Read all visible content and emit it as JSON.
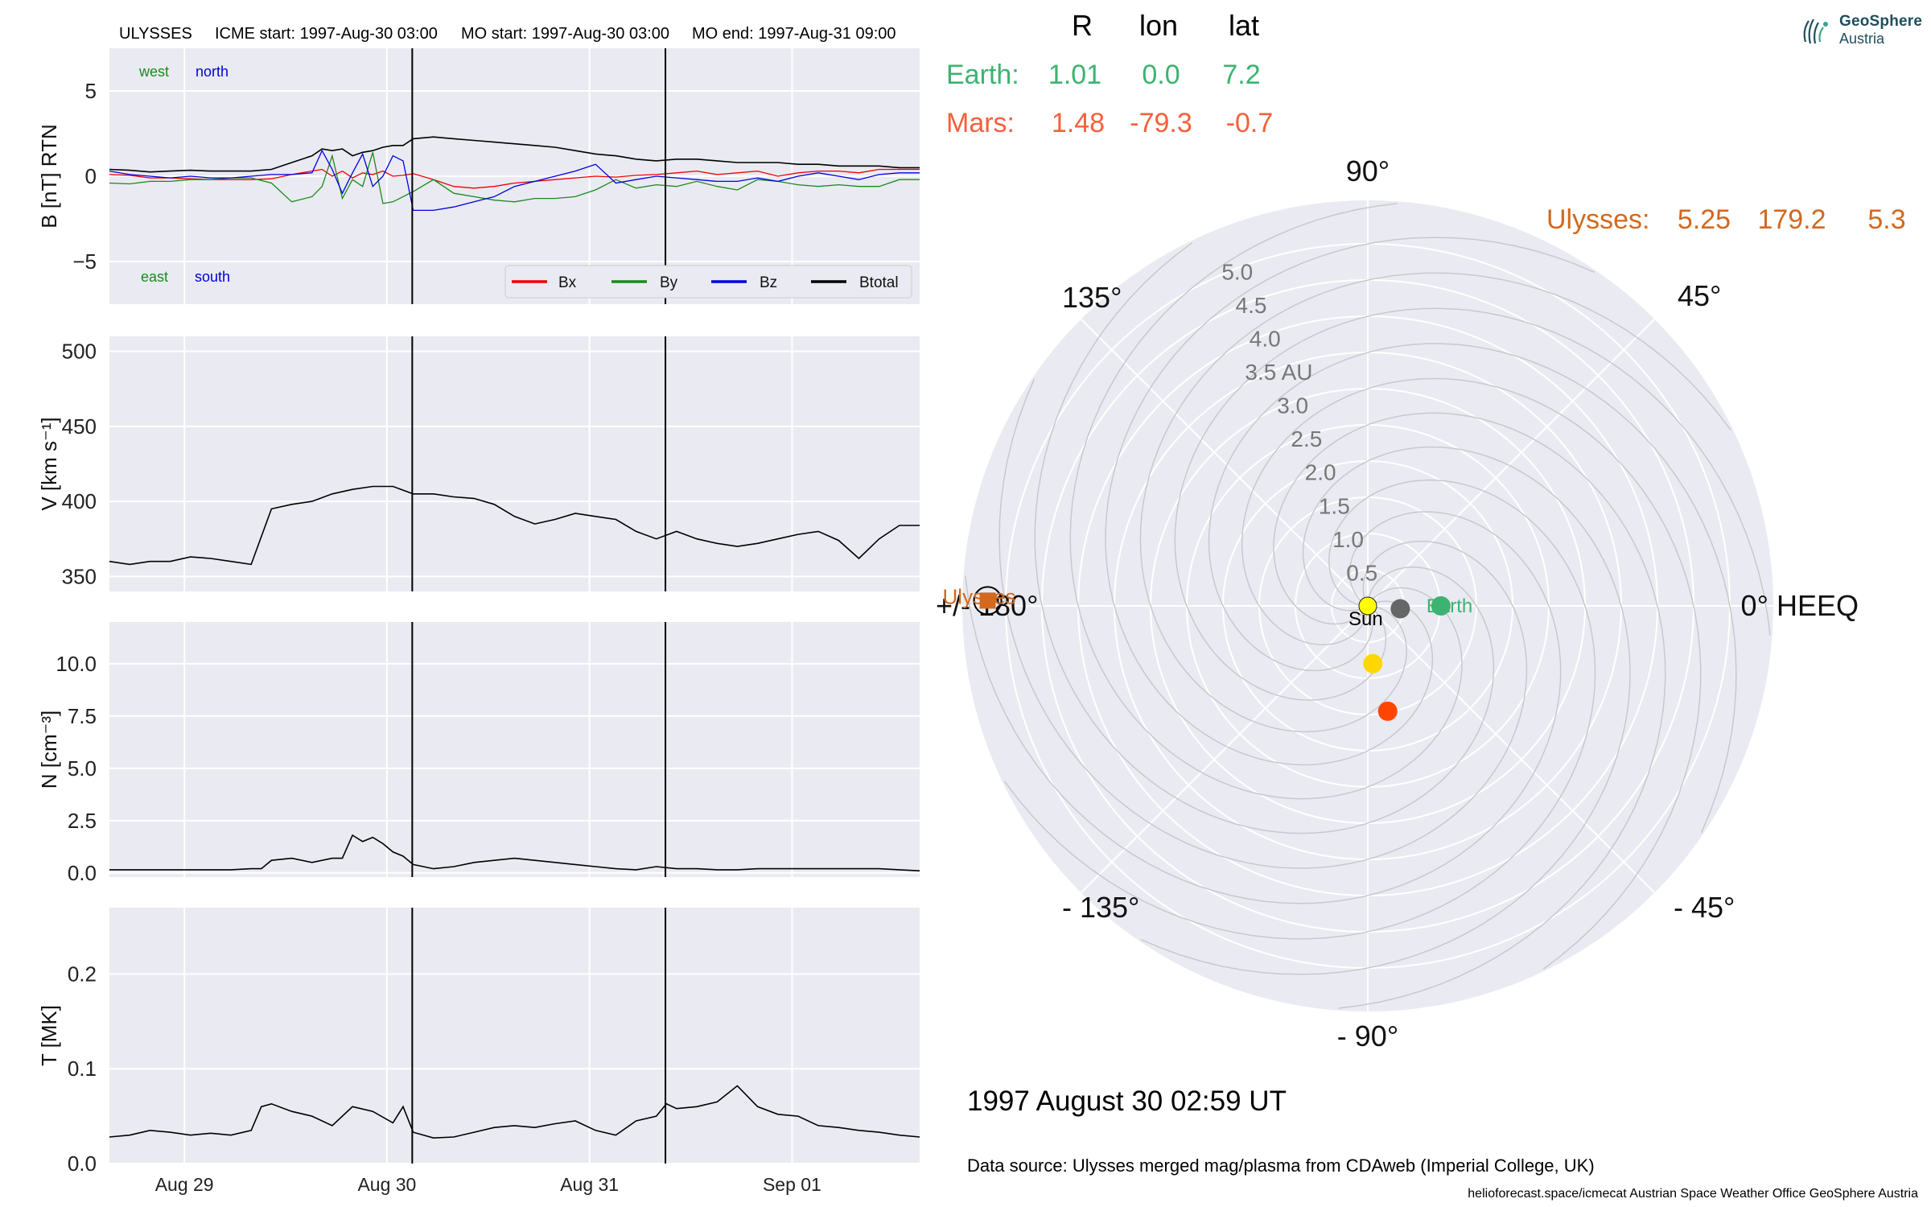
{
  "header": {
    "spacecraft": "ULYSSES",
    "icme_start": "ICME start: 1997-Aug-30 03:00",
    "mo_start": "MO start: 1997-Aug-30 03:00",
    "mo_end": "MO end: 1997-Aug-31 09:00"
  },
  "logo": {
    "line1": "GeoSphere",
    "line2": "Austria",
    "color": "#1f4e5c"
  },
  "positions_table": {
    "col_r": "R",
    "col_lon": "lon",
    "col_lat": "lat",
    "earth": {
      "label": "Earth:",
      "r": "1.01",
      "lon": "0.0",
      "lat": "7.2",
      "color": "#3cb371"
    },
    "mars": {
      "label": "Mars:",
      "r": "1.48",
      "lon": "-79.3",
      "lat": "-0.7",
      "color": "#f4603c"
    },
    "ulysses": {
      "label": "Ulysses:",
      "r": "5.25",
      "lon": "179.2",
      "lat": "5.3",
      "color": "#d2691e"
    }
  },
  "colors": {
    "bx": "#ee0000",
    "by": "#1a8a1a",
    "bz": "#0000dd",
    "btotal": "#000000",
    "panel_bg": "#eaeaf2",
    "grid": "#ffffff",
    "polar_bg": "#eaeaf2",
    "sun": "#ffff00",
    "earth_dot": "#3cb371",
    "mars_dot": "#ff4500",
    "gray_dot": "#666666",
    "yellow_dot": "#ffd700",
    "ulysses_marker": "#d2691e"
  },
  "timestamp": "1997 August 30  02:59 UT",
  "data_source": "Data source: Ulysses merged mag/plasma from CDAweb (Imperial College, UK)",
  "footer": "helioforecast.space/icmecat   Austrian Space Weather Office   GeoSphere Austria",
  "chart_data": [
    {
      "type": "line",
      "panel": "magnetic_field",
      "ylabel": "B [nT] RTN",
      "ylim": [
        -7.5,
        7.5
      ],
      "yticks": [
        -5,
        0,
        5
      ],
      "ytick_labels": [
        "−5",
        "0",
        "5"
      ],
      "xlim": [
        0,
        4
      ],
      "xticks": [
        0.37,
        1.37,
        2.37,
        3.37
      ],
      "xtick_labels": [
        "Aug 29",
        "Aug 30",
        "Aug 31",
        "Sep 01"
      ],
      "vlines": [
        1.495,
        2.745
      ],
      "annotations": {
        "west": "west",
        "north": "north",
        "east": "east",
        "south": "south"
      },
      "legend": [
        "Bx",
        "By",
        "Bz",
        "Btotal"
      ],
      "legend_position": "lower-right",
      "x": [
        0,
        0.1,
        0.2,
        0.3,
        0.4,
        0.5,
        0.6,
        0.7,
        0.8,
        0.9,
        1.0,
        1.05,
        1.1,
        1.15,
        1.2,
        1.25,
        1.3,
        1.35,
        1.4,
        1.45,
        1.5,
        1.6,
        1.7,
        1.8,
        1.9,
        2.0,
        2.1,
        2.2,
        2.3,
        2.4,
        2.5,
        2.6,
        2.7,
        2.8,
        2.9,
        3.0,
        3.1,
        3.2,
        3.3,
        3.4,
        3.5,
        3.6,
        3.7,
        3.8,
        3.9,
        4.0
      ],
      "series": [
        {
          "name": "Bx",
          "values": [
            0.1,
            0.05,
            -0.1,
            -0.1,
            -0.15,
            -0.2,
            -0.2,
            -0.2,
            -0.15,
            0.1,
            0.3,
            0.4,
            0.0,
            0.3,
            -0.1,
            0.2,
            0.1,
            0.3,
            0.0,
            0.05,
            0.15,
            -0.2,
            -0.6,
            -0.7,
            -0.6,
            -0.4,
            -0.3,
            -0.2,
            -0.1,
            0.0,
            -0.05,
            0.05,
            0.1,
            0.2,
            0.3,
            0.1,
            0.2,
            0.3,
            0.0,
            0.2,
            0.3,
            0.3,
            0.2,
            0.4,
            0.4,
            0.4
          ]
        },
        {
          "name": "By",
          "values": [
            -0.4,
            -0.45,
            -0.3,
            -0.3,
            -0.2,
            -0.2,
            -0.1,
            -0.1,
            -0.4,
            -1.5,
            -1.2,
            -0.6,
            1.2,
            -1.3,
            -0.2,
            -0.6,
            1.4,
            -1.6,
            -1.5,
            -1.2,
            -0.9,
            -0.2,
            -1.0,
            -1.2,
            -1.4,
            -1.5,
            -1.3,
            -1.3,
            -1.2,
            -0.8,
            -0.2,
            -0.7,
            -0.5,
            -0.6,
            -0.3,
            -0.6,
            -0.8,
            -0.2,
            -0.3,
            -0.5,
            -0.6,
            -0.5,
            -0.6,
            -0.6,
            -0.2,
            -0.2
          ]
        },
        {
          "name": "Bz",
          "values": [
            0.3,
            0.1,
            0.0,
            -0.1,
            0.0,
            -0.1,
            -0.1,
            0.0,
            0.1,
            0.1,
            0.2,
            1.5,
            0.4,
            -1.0,
            0.2,
            1.3,
            -0.6,
            0.0,
            1.2,
            0.9,
            -2.0,
            -2.0,
            -1.8,
            -1.5,
            -1.2,
            -0.6,
            -0.3,
            0.0,
            0.3,
            0.7,
            -0.4,
            -0.2,
            0.0,
            -0.1,
            -0.2,
            -0.3,
            -0.3,
            -0.1,
            -0.3,
            0.0,
            0.2,
            0.0,
            -0.2,
            0.1,
            0.2,
            0.2
          ]
        },
        {
          "name": "Btotal",
          "values": [
            0.4,
            0.35,
            0.25,
            0.3,
            0.35,
            0.3,
            0.3,
            0.3,
            0.4,
            0.8,
            1.2,
            1.6,
            1.5,
            1.6,
            1.2,
            1.4,
            1.5,
            1.7,
            1.8,
            1.8,
            2.2,
            2.3,
            2.2,
            2.1,
            2.0,
            1.9,
            1.8,
            1.7,
            1.5,
            1.3,
            1.2,
            1.0,
            0.9,
            1.0,
            1.0,
            0.9,
            0.8,
            0.8,
            0.8,
            0.7,
            0.7,
            0.6,
            0.6,
            0.6,
            0.5,
            0.5
          ]
        }
      ]
    },
    {
      "type": "line",
      "panel": "speed",
      "ylabel": "V [km s⁻¹]",
      "ylim": [
        340,
        510
      ],
      "yticks": [
        350,
        400,
        450,
        500
      ],
      "ytick_labels": [
        "350",
        "400",
        "450",
        "500"
      ],
      "xlim": [
        0,
        4
      ],
      "vlines": [
        1.495,
        2.745
      ],
      "x": [
        0,
        0.1,
        0.2,
        0.3,
        0.4,
        0.5,
        0.6,
        0.7,
        0.8,
        0.9,
        1.0,
        1.1,
        1.2,
        1.3,
        1.4,
        1.5,
        1.6,
        1.7,
        1.8,
        1.9,
        2.0,
        2.1,
        2.2,
        2.3,
        2.4,
        2.5,
        2.6,
        2.7,
        2.8,
        2.9,
        3.0,
        3.1,
        3.2,
        3.3,
        3.4,
        3.5,
        3.6,
        3.7,
        3.8,
        3.9,
        4.0
      ],
      "series": [
        {
          "name": "",
          "values": [
            360,
            358,
            360,
            360,
            363,
            362,
            360,
            358,
            395,
            398,
            400,
            405,
            408,
            410,
            410,
            405,
            405,
            403,
            402,
            398,
            390,
            385,
            388,
            392,
            390,
            388,
            380,
            375,
            380,
            375,
            372,
            370,
            372,
            375,
            378,
            380,
            374,
            362,
            375,
            384,
            384
          ]
        }
      ]
    },
    {
      "type": "line",
      "panel": "density",
      "ylabel": "N [cm⁻³]",
      "ylim": [
        -0.2,
        12
      ],
      "yticks": [
        0,
        2.5,
        5,
        7.5,
        10
      ],
      "ytick_labels": [
        "0.0",
        "2.5",
        "5.0",
        "7.5",
        "10.0"
      ],
      "xlim": [
        0,
        4
      ],
      "vlines": [
        1.495,
        2.745
      ],
      "x": [
        0,
        0.1,
        0.2,
        0.3,
        0.4,
        0.5,
        0.6,
        0.7,
        0.75,
        0.8,
        0.9,
        1.0,
        1.1,
        1.15,
        1.2,
        1.25,
        1.3,
        1.35,
        1.4,
        1.45,
        1.5,
        1.6,
        1.7,
        1.8,
        1.9,
        2.0,
        2.1,
        2.2,
        2.3,
        2.4,
        2.5,
        2.6,
        2.7,
        2.8,
        2.9,
        3.0,
        3.1,
        3.2,
        3.3,
        3.4,
        3.5,
        3.6,
        3.7,
        3.8,
        3.9,
        4.0
      ],
      "series": [
        {
          "name": "",
          "values": [
            0.15,
            0.15,
            0.15,
            0.15,
            0.15,
            0.15,
            0.15,
            0.2,
            0.2,
            0.6,
            0.7,
            0.5,
            0.7,
            0.7,
            1.8,
            1.5,
            1.7,
            1.4,
            1.0,
            0.8,
            0.4,
            0.2,
            0.3,
            0.5,
            0.6,
            0.7,
            0.6,
            0.5,
            0.4,
            0.3,
            0.2,
            0.15,
            0.3,
            0.2,
            0.2,
            0.15,
            0.15,
            0.2,
            0.2,
            0.2,
            0.2,
            0.2,
            0.2,
            0.2,
            0.15,
            0.1
          ]
        }
      ]
    },
    {
      "type": "line",
      "panel": "temperature",
      "ylabel": "T [MK]",
      "ylim": [
        0,
        0.27
      ],
      "yticks": [
        0,
        0.1,
        0.2
      ],
      "ytick_labels": [
        "0.0",
        "0.1",
        "0.2"
      ],
      "xlim": [
        0,
        4
      ],
      "xticks": [
        0.37,
        1.37,
        2.37,
        3.37
      ],
      "xtick_labels": [
        "Aug 29",
        "Aug 30",
        "Aug 31",
        "Sep 01"
      ],
      "vlines": [
        1.495,
        2.745
      ],
      "x": [
        0,
        0.1,
        0.2,
        0.3,
        0.4,
        0.5,
        0.6,
        0.7,
        0.75,
        0.8,
        0.9,
        1.0,
        1.1,
        1.2,
        1.3,
        1.4,
        1.45,
        1.5,
        1.6,
        1.7,
        1.8,
        1.9,
        2.0,
        2.1,
        2.2,
        2.3,
        2.4,
        2.5,
        2.6,
        2.7,
        2.75,
        2.8,
        2.9,
        3.0,
        3.1,
        3.2,
        3.3,
        3.4,
        3.5,
        3.6,
        3.7,
        3.8,
        3.9,
        4.0
      ],
      "series": [
        {
          "name": "",
          "values": [
            0.028,
            0.03,
            0.035,
            0.033,
            0.03,
            0.032,
            0.03,
            0.035,
            0.06,
            0.063,
            0.055,
            0.05,
            0.04,
            0.06,
            0.055,
            0.043,
            0.06,
            0.033,
            0.027,
            0.028,
            0.033,
            0.038,
            0.04,
            0.038,
            0.042,
            0.045,
            0.035,
            0.03,
            0.045,
            0.05,
            0.063,
            0.058,
            0.06,
            0.065,
            0.082,
            0.06,
            0.052,
            0.05,
            0.04,
            0.038,
            0.035,
            0.033,
            0.03,
            0.028
          ]
        }
      ]
    },
    {
      "type": "scatter",
      "panel": "polar_orbit",
      "projection": "polar",
      "rlim": [
        0,
        5.6
      ],
      "rticks": [
        0.5,
        1.0,
        1.5,
        2.0,
        2.5,
        3.0,
        3.5,
        4.0,
        4.5,
        5.0
      ],
      "rtick_labels": [
        "0.5",
        "1.0",
        "1.5",
        "2.0",
        "2.5",
        "3.0",
        "3.5 AU",
        "4.0",
        "4.5",
        "5.0"
      ],
      "angle_labels": {
        "a0": "0° HEEQ",
        "a45": "45°",
        "a90": "90°",
        "a135": "135°",
        "a180": "+/- 180°",
        "am135": "- 135°",
        "am90": "- 90°",
        "am45": "- 45°"
      },
      "points": [
        {
          "name": "Sun",
          "r": 0.0,
          "lon": 0.0
        },
        {
          "name": "Earth",
          "r": 1.01,
          "lon": 0.0
        },
        {
          "name": "",
          "r": 0.45,
          "lon": -5.0
        },
        {
          "name": "",
          "r": 0.8,
          "lon": -85.0
        },
        {
          "name": "",
          "r": 1.48,
          "lon": -79.3
        },
        {
          "name": "Ulysses",
          "r": 5.25,
          "lon": 179.2
        }
      ]
    }
  ]
}
